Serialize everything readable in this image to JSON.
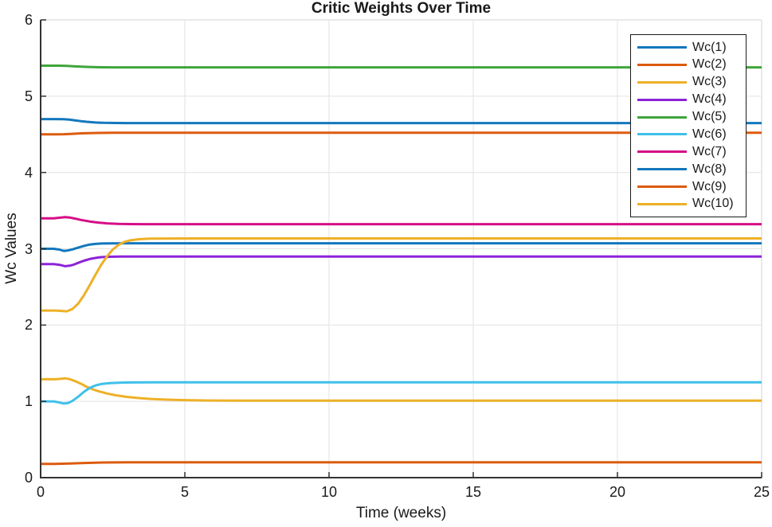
{
  "chart_data": {
    "type": "line",
    "title": "Critic Weights Over Time",
    "xlabel": "Time (weeks)",
    "ylabel": "Wc Values",
    "xlim": [
      0,
      25
    ],
    "ylim": [
      0,
      6
    ],
    "xticks": [
      0,
      5,
      10,
      15,
      20,
      25
    ],
    "yticks": [
      0,
      1,
      2,
      3,
      4,
      5,
      6
    ],
    "grid": true,
    "legend_position": "northeast",
    "colors": {
      "axis": "#333333",
      "box": "#e2e2e2",
      "grid": "#e6e6e6",
      "text": "#1a1a1a",
      "legend_border": "#1a1a1a",
      "background": "#ffffff"
    },
    "series": [
      {
        "name": "Wc(1)",
        "color": "#1277bd",
        "points": [
          [
            0,
            4.7
          ],
          [
            0.5,
            4.7
          ],
          [
            0.8,
            4.698
          ],
          [
            1.0,
            4.692
          ],
          [
            1.2,
            4.683
          ],
          [
            1.4,
            4.673
          ],
          [
            1.6,
            4.664
          ],
          [
            1.9,
            4.655
          ],
          [
            2.2,
            4.651
          ],
          [
            2.6,
            4.649
          ],
          [
            3.0,
            4.648
          ],
          [
            4,
            4.648
          ],
          [
            6,
            4.648
          ],
          [
            10,
            4.648
          ],
          [
            15,
            4.648
          ],
          [
            20,
            4.648
          ],
          [
            25,
            4.648
          ]
        ]
      },
      {
        "name": "Wc(2)",
        "color": "#dd5b0e",
        "points": [
          [
            0,
            4.5
          ],
          [
            0.5,
            4.5
          ],
          [
            0.8,
            4.502
          ],
          [
            1.1,
            4.507
          ],
          [
            1.4,
            4.513
          ],
          [
            1.8,
            4.517
          ],
          [
            2.2,
            4.519
          ],
          [
            2.6,
            4.52
          ],
          [
            3,
            4.52
          ],
          [
            5,
            4.52
          ],
          [
            10,
            4.52
          ],
          [
            15,
            4.52
          ],
          [
            20,
            4.52
          ],
          [
            25,
            4.52
          ]
        ]
      },
      {
        "name": "Wc(3)",
        "color": "#eeb027",
        "points": [
          [
            0,
            1.29
          ],
          [
            0.5,
            1.29
          ],
          [
            0.7,
            1.295
          ],
          [
            0.85,
            1.302
          ],
          [
            1.0,
            1.292
          ],
          [
            1.2,
            1.265
          ],
          [
            1.4,
            1.23
          ],
          [
            1.6,
            1.19
          ],
          [
            1.8,
            1.158
          ],
          [
            2.0,
            1.133
          ],
          [
            2.3,
            1.103
          ],
          [
            2.6,
            1.08
          ],
          [
            3.0,
            1.058
          ],
          [
            3.4,
            1.043
          ],
          [
            3.8,
            1.032
          ],
          [
            4.2,
            1.025
          ],
          [
            4.7,
            1.018
          ],
          [
            5.2,
            1.014
          ],
          [
            6,
            1.011
          ],
          [
            7,
            1.01
          ],
          [
            10,
            1.01
          ],
          [
            15,
            1.01
          ],
          [
            20,
            1.01
          ],
          [
            25,
            1.01
          ]
        ]
      },
      {
        "name": "Wc(4)",
        "color": "#8d23d8",
        "points": [
          [
            0,
            2.8
          ],
          [
            0.45,
            2.8
          ],
          [
            0.65,
            2.79
          ],
          [
            0.85,
            2.772
          ],
          [
            1.0,
            2.778
          ],
          [
            1.15,
            2.792
          ],
          [
            1.3,
            2.815
          ],
          [
            1.5,
            2.843
          ],
          [
            1.7,
            2.865
          ],
          [
            1.9,
            2.88
          ],
          [
            2.1,
            2.89
          ],
          [
            2.4,
            2.896
          ],
          [
            2.8,
            2.898
          ],
          [
            3.5,
            2.898
          ],
          [
            5,
            2.898
          ],
          [
            10,
            2.898
          ],
          [
            15,
            2.898
          ],
          [
            20,
            2.898
          ],
          [
            25,
            2.898
          ]
        ]
      },
      {
        "name": "Wc(5)",
        "color": "#3ea53b",
        "points": [
          [
            0,
            5.4
          ],
          [
            0.6,
            5.4
          ],
          [
            0.9,
            5.397
          ],
          [
            1.2,
            5.391
          ],
          [
            1.5,
            5.385
          ],
          [
            1.8,
            5.381
          ],
          [
            2.1,
            5.379
          ],
          [
            2.5,
            5.378
          ],
          [
            3,
            5.378
          ],
          [
            5,
            5.378
          ],
          [
            10,
            5.378
          ],
          [
            15,
            5.378
          ],
          [
            20,
            5.378
          ],
          [
            25,
            5.378
          ]
        ]
      },
      {
        "name": "Wc(6)",
        "color": "#3fc0ea",
        "points": [
          [
            0,
            1.0
          ],
          [
            0.45,
            1.0
          ],
          [
            0.65,
            0.985
          ],
          [
            0.8,
            0.972
          ],
          [
            0.95,
            0.978
          ],
          [
            1.1,
            1.005
          ],
          [
            1.3,
            1.06
          ],
          [
            1.5,
            1.125
          ],
          [
            1.7,
            1.175
          ],
          [
            1.9,
            1.208
          ],
          [
            2.1,
            1.227
          ],
          [
            2.4,
            1.24
          ],
          [
            2.8,
            1.246
          ],
          [
            3.2,
            1.248
          ],
          [
            4,
            1.249
          ],
          [
            6,
            1.249
          ],
          [
            10,
            1.249
          ],
          [
            15,
            1.249
          ],
          [
            20,
            1.249
          ],
          [
            25,
            1.249
          ]
        ]
      },
      {
        "name": "Wc(7)",
        "color": "#d60d87",
        "points": [
          [
            0,
            3.4
          ],
          [
            0.45,
            3.4
          ],
          [
            0.65,
            3.407
          ],
          [
            0.85,
            3.415
          ],
          [
            1.0,
            3.41
          ],
          [
            1.2,
            3.396
          ],
          [
            1.4,
            3.378
          ],
          [
            1.7,
            3.358
          ],
          [
            2.0,
            3.343
          ],
          [
            2.3,
            3.333
          ],
          [
            2.7,
            3.326
          ],
          [
            3.1,
            3.323
          ],
          [
            3.6,
            3.322
          ],
          [
            5,
            3.322
          ],
          [
            10,
            3.322
          ],
          [
            15,
            3.322
          ],
          [
            20,
            3.322
          ],
          [
            25,
            3.322
          ]
        ]
      },
      {
        "name": "Wc(8)",
        "color": "#1277bd",
        "points": [
          [
            0,
            3.0
          ],
          [
            0.45,
            3.0
          ],
          [
            0.65,
            2.99
          ],
          [
            0.8,
            2.972
          ],
          [
            0.95,
            2.978
          ],
          [
            1.1,
            2.992
          ],
          [
            1.3,
            3.015
          ],
          [
            1.5,
            3.038
          ],
          [
            1.7,
            3.055
          ],
          [
            1.9,
            3.064
          ],
          [
            2.1,
            3.069
          ],
          [
            2.4,
            3.071
          ],
          [
            2.8,
            3.072
          ],
          [
            3.5,
            3.072
          ],
          [
            5,
            3.072
          ],
          [
            10,
            3.072
          ],
          [
            15,
            3.072
          ],
          [
            20,
            3.072
          ],
          [
            25,
            3.072
          ]
        ]
      },
      {
        "name": "Wc(9)",
        "color": "#dd5b0e",
        "points": [
          [
            0,
            0.18
          ],
          [
            0.5,
            0.181
          ],
          [
            1.0,
            0.186
          ],
          [
            1.5,
            0.192
          ],
          [
            2.0,
            0.197
          ],
          [
            2.5,
            0.199
          ],
          [
            3.0,
            0.2
          ],
          [
            5,
            0.201
          ],
          [
            10,
            0.201
          ],
          [
            15,
            0.201
          ],
          [
            20,
            0.201
          ],
          [
            25,
            0.201
          ]
        ]
      },
      {
        "name": "Wc(10)",
        "color": "#eeb027",
        "points": [
          [
            0,
            2.19
          ],
          [
            0.5,
            2.19
          ],
          [
            0.7,
            2.186
          ],
          [
            0.9,
            2.18
          ],
          [
            1.1,
            2.21
          ],
          [
            1.3,
            2.28
          ],
          [
            1.5,
            2.39
          ],
          [
            1.7,
            2.52
          ],
          [
            1.9,
            2.66
          ],
          [
            2.1,
            2.79
          ],
          [
            2.3,
            2.9
          ],
          [
            2.5,
            2.99
          ],
          [
            2.7,
            3.05
          ],
          [
            2.9,
            3.09
          ],
          [
            3.1,
            3.11
          ],
          [
            3.4,
            3.125
          ],
          [
            3.8,
            3.132
          ],
          [
            4.5,
            3.135
          ],
          [
            6,
            3.136
          ],
          [
            10,
            3.136
          ],
          [
            15,
            3.136
          ],
          [
            20,
            3.136
          ],
          [
            25,
            3.136
          ]
        ]
      }
    ]
  }
}
